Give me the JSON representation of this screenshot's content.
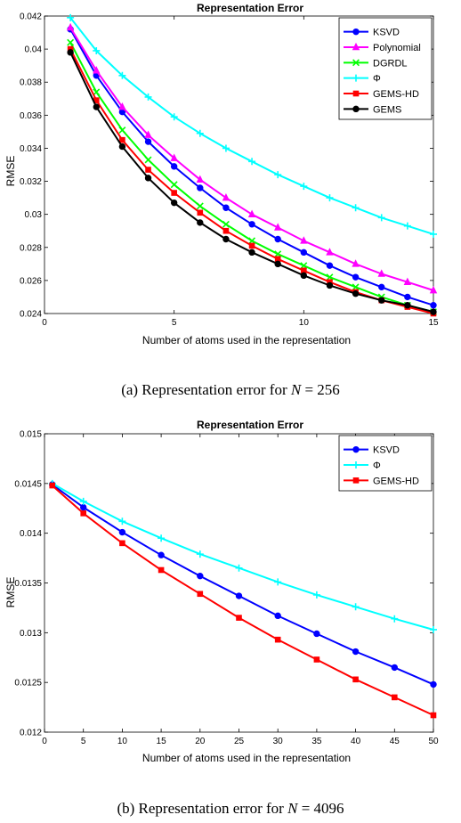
{
  "chart_data": [
    {
      "type": "line",
      "title": "Representation Error",
      "xlabel": "Number of atoms used in the representation",
      "ylabel": "RMSE",
      "xlim": [
        0,
        15
      ],
      "ylim": [
        0.024,
        0.042
      ],
      "xticks": [
        0,
        5,
        10,
        15
      ],
      "yticks": [
        0.024,
        0.026,
        0.028,
        0.03,
        0.032,
        0.034,
        0.036,
        0.038,
        0.04,
        0.042
      ],
      "ytick_labels": [
        "0.024",
        "0.026",
        "0.028",
        "0.03",
        "0.032",
        "0.034",
        "0.036",
        "0.038",
        "0.04",
        "0.042"
      ],
      "legend_position": "top-right",
      "x": [
        1,
        2,
        3,
        4,
        5,
        6,
        7,
        8,
        9,
        10,
        11,
        12,
        13,
        14,
        15
      ],
      "series": [
        {
          "name": "KSVD",
          "color": "#0000ff",
          "marker": "circle",
          "values": [
            0.0412,
            0.0384,
            0.0362,
            0.0344,
            0.0329,
            0.0316,
            0.0304,
            0.0294,
            0.0285,
            0.0277,
            0.0269,
            0.0262,
            0.0256,
            0.025,
            0.0245
          ]
        },
        {
          "name": "Polynomial",
          "color": "#ff00ff",
          "marker": "triangle",
          "values": [
            0.0413,
            0.0387,
            0.0365,
            0.0348,
            0.0334,
            0.0321,
            0.031,
            0.03,
            0.0292,
            0.0284,
            0.0277,
            0.027,
            0.0264,
            0.0259,
            0.0254
          ]
        },
        {
          "name": "DGRDL",
          "color": "#00ff00",
          "marker": "x",
          "values": [
            0.0404,
            0.0374,
            0.0351,
            0.0333,
            0.0318,
            0.0305,
            0.0294,
            0.0284,
            0.0276,
            0.0269,
            0.0262,
            0.0256,
            0.025,
            0.0245,
            0.0241
          ]
        },
        {
          "name": "Φ",
          "color": "#00ffff",
          "marker": "plus",
          "values": [
            0.0419,
            0.0399,
            0.0384,
            0.0371,
            0.0359,
            0.0349,
            0.034,
            0.0332,
            0.0324,
            0.0317,
            0.031,
            0.0304,
            0.0298,
            0.0293,
            0.0288
          ]
        },
        {
          "name": "GEMS-HD",
          "color": "#ff0000",
          "marker": "square",
          "values": [
            0.04,
            0.0369,
            0.0345,
            0.0327,
            0.0313,
            0.0301,
            0.029,
            0.0281,
            0.0273,
            0.0266,
            0.0259,
            0.0253,
            0.0248,
            0.0244,
            0.024
          ]
        },
        {
          "name": "GEMS",
          "color": "#000000",
          "marker": "circle",
          "values": [
            0.0398,
            0.0365,
            0.0341,
            0.0322,
            0.0307,
            0.0295,
            0.0285,
            0.0277,
            0.027,
            0.0263,
            0.0257,
            0.0252,
            0.0248,
            0.0245,
            0.0241
          ]
        }
      ]
    },
    {
      "type": "line",
      "title": "Representation Error",
      "xlabel": "Number of atoms used in the representation",
      "ylabel": "RMSE",
      "xlim": [
        0,
        50
      ],
      "ylim": [
        0.012,
        0.015
      ],
      "xticks": [
        0,
        5,
        10,
        15,
        20,
        25,
        30,
        35,
        40,
        45,
        50
      ],
      "yticks": [
        0.012,
        0.0125,
        0.013,
        0.0135,
        0.014,
        0.0145,
        0.015
      ],
      "ytick_labels": [
        "0.012",
        "0.0125",
        "0.013",
        "0.0135",
        "0.014",
        "0.0145",
        "0.015"
      ],
      "legend_position": "top-right",
      "x": [
        1,
        5,
        10,
        15,
        20,
        25,
        30,
        35,
        40,
        45,
        50
      ],
      "series": [
        {
          "name": "KSVD",
          "color": "#0000ff",
          "marker": "circle",
          "values": [
            0.01449,
            0.01426,
            0.01401,
            0.01378,
            0.01357,
            0.01337,
            0.01317,
            0.01299,
            0.01281,
            0.01265,
            0.01248
          ]
        },
        {
          "name": "Φ",
          "color": "#00ffff",
          "marker": "plus",
          "values": [
            0.0145,
            0.01432,
            0.01412,
            0.01395,
            0.01379,
            0.01365,
            0.01351,
            0.01338,
            0.01326,
            0.01314,
            0.01303
          ]
        },
        {
          "name": "GEMS-HD",
          "color": "#ff0000",
          "marker": "square",
          "values": [
            0.01448,
            0.0142,
            0.0139,
            0.01363,
            0.01339,
            0.01315,
            0.01293,
            0.01273,
            0.01253,
            0.01235,
            0.01217
          ]
        }
      ]
    }
  ],
  "captions": [
    {
      "prefix": "(a) Representation error for ",
      "var": "N",
      "suffix": " = 256"
    },
    {
      "prefix": "(b) Representation error for ",
      "var": "N",
      "suffix": " = 4096"
    }
  ]
}
